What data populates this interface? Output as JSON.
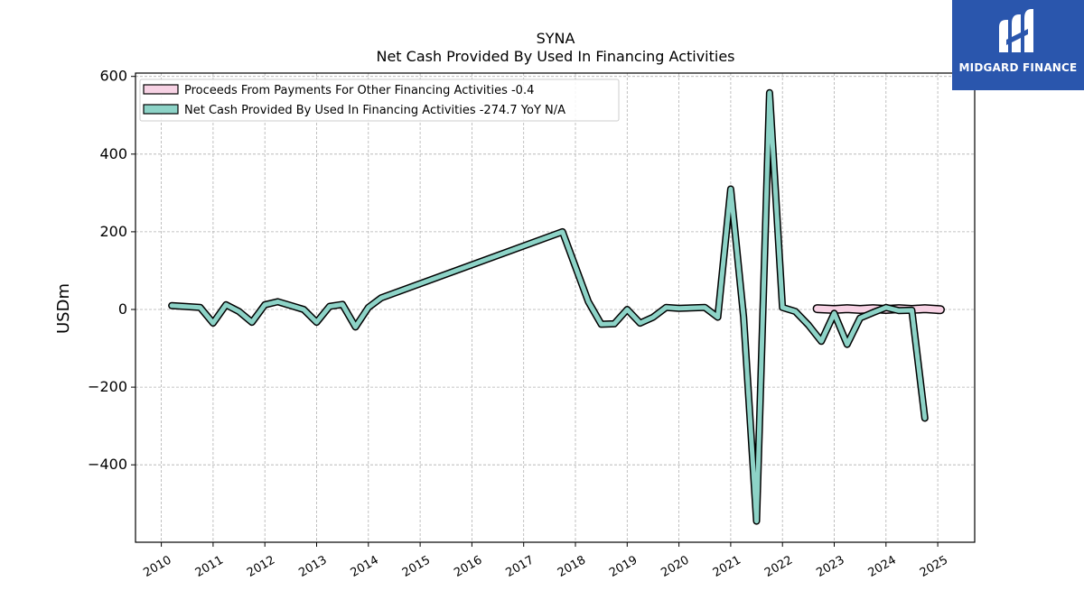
{
  "chart_data": {
    "type": "line",
    "title": "SYNA",
    "subtitle": "Net Cash Provided By Used In Financing Activities",
    "ylabel": "USDm",
    "xlabel": "",
    "ylim": [
      -600,
      610
    ],
    "xlim": [
      2009.5,
      2025.75
    ],
    "yticks": [
      600,
      400,
      200,
      0,
      -200,
      -400
    ],
    "ytick_labels": [
      "600",
      "400",
      "200",
      "0",
      "−200",
      "−400"
    ],
    "xticks": [
      2010,
      2011,
      2012,
      2013,
      2014,
      2015,
      2016,
      2017,
      2018,
      2019,
      2020,
      2021,
      2022,
      2023,
      2024,
      2025
    ],
    "xtick_labels": [
      "2010",
      "2011",
      "2012",
      "2013",
      "2014",
      "2015",
      "2016",
      "2017",
      "2018",
      "2019",
      "2020",
      "2021",
      "2022",
      "2023",
      "2024",
      "2025"
    ],
    "grid": true,
    "legend_position": "top-left",
    "series": [
      {
        "name": "Proceeds From Payments For Other Financing Activities",
        "legend_label": "Proceeds From Payments For Other Financing Activities  -0.4",
        "color": "#f7d2e4",
        "outline": "#000000",
        "points": [
          [
            2022.67,
            2
          ],
          [
            2023.0,
            0
          ],
          [
            2023.25,
            2
          ],
          [
            2023.5,
            0
          ],
          [
            2023.75,
            2
          ],
          [
            2024.0,
            0
          ],
          [
            2024.25,
            2
          ],
          [
            2024.5,
            0
          ],
          [
            2024.75,
            2
          ],
          [
            2025.05,
            -0.4
          ]
        ]
      },
      {
        "name": "Net Cash Provided By Used In Financing Activities",
        "legend_label": "Net Cash Provided By Used In Financing Activities  -274.7 YoY N/A",
        "color": "#8dd3c7",
        "outline": "#000000",
        "points": [
          [
            2010.2,
            10
          ],
          [
            2010.75,
            5
          ],
          [
            2011.0,
            -35
          ],
          [
            2011.25,
            12
          ],
          [
            2011.5,
            -5
          ],
          [
            2011.75,
            -33
          ],
          [
            2012.0,
            12
          ],
          [
            2012.25,
            20
          ],
          [
            2012.5,
            10
          ],
          [
            2012.75,
            0
          ],
          [
            2013.0,
            -33
          ],
          [
            2013.25,
            8
          ],
          [
            2013.5,
            13
          ],
          [
            2013.75,
            -45
          ],
          [
            2014.0,
            5
          ],
          [
            2014.25,
            30
          ],
          [
            2017.75,
            200
          ],
          [
            2018.25,
            20
          ],
          [
            2018.5,
            -38
          ],
          [
            2018.75,
            -37
          ],
          [
            2019.0,
            0
          ],
          [
            2019.25,
            -35
          ],
          [
            2019.5,
            -20
          ],
          [
            2019.75,
            5
          ],
          [
            2020.0,
            3
          ],
          [
            2020.5,
            5
          ],
          [
            2020.75,
            -20
          ],
          [
            2021.0,
            310
          ],
          [
            2021.25,
            -20
          ],
          [
            2021.5,
            -545
          ],
          [
            2021.75,
            558
          ],
          [
            2022.0,
            5
          ],
          [
            2022.25,
            -5
          ],
          [
            2022.5,
            -40
          ],
          [
            2022.75,
            -82
          ],
          [
            2023.0,
            -10
          ],
          [
            2023.25,
            -90
          ],
          [
            2023.5,
            -22
          ],
          [
            2023.75,
            -8
          ],
          [
            2024.0,
            5
          ],
          [
            2024.25,
            -3
          ],
          [
            2024.5,
            -2
          ],
          [
            2024.75,
            -280
          ]
        ]
      }
    ]
  },
  "logo": {
    "text": "MIDGARD FINANCE"
  }
}
